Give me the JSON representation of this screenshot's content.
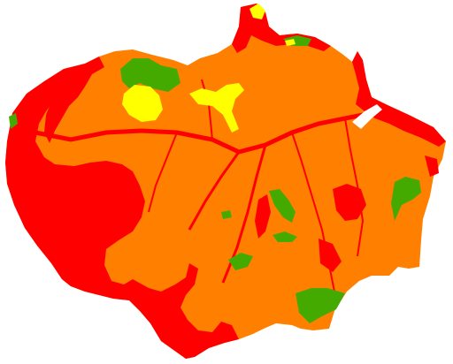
{
  "map": {
    "classes": [
      {
        "id": "orange",
        "color": "#ff8000"
      },
      {
        "id": "red",
        "color": "#ff0000"
      },
      {
        "id": "green",
        "color": "#44aa00"
      },
      {
        "id": "yellow",
        "color": "#ffff00"
      },
      {
        "id": "background",
        "color": "#ffffff"
      }
    ]
  }
}
